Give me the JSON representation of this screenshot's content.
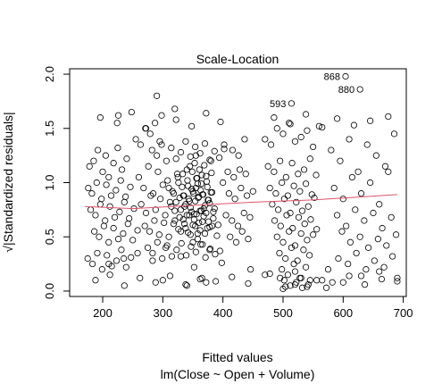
{
  "chart_data": {
    "type": "scatter",
    "title": "Scale-Location",
    "xlabel": "Fitted values",
    "subtitle": "lm(Close ~ Open + Volume)",
    "ylabel": "√|Standardized residuals|",
    "xlim": [
      145,
      705
    ],
    "ylim": [
      -0.05,
      2.05
    ],
    "x_ticks": [
      200,
      300,
      400,
      500,
      600,
      700
    ],
    "x_tick_labels": [
      "200",
      "300",
      "400",
      "500",
      "600",
      "700"
    ],
    "y_ticks": [
      0.0,
      0.5,
      1.0,
      1.5,
      2.0
    ],
    "y_tick_labels": [
      "0.0",
      "0.5",
      "1.0",
      "1.5",
      "2.0"
    ],
    "grid": false,
    "marker": "open-circle",
    "smoother_color": "#DF536B",
    "smoother": {
      "x": [
        170,
        250,
        350,
        450,
        550,
        690
      ],
      "y": [
        0.78,
        0.76,
        0.79,
        0.82,
        0.84,
        0.89
      ]
    },
    "labeled_points": [
      {
        "label": "868",
        "x": 604,
        "y": 1.98
      },
      {
        "label": "593",
        "x": 514,
        "y": 1.73
      },
      {
        "label": "880",
        "x": 628,
        "y": 1.86
      }
    ],
    "points": {
      "x": [
        178,
        185,
        192,
        200,
        205,
        210,
        218,
        225,
        232,
        240,
        176,
        182,
        190,
        198,
        206,
        214,
        222,
        230,
        238,
        246,
        180,
        188,
        196,
        204,
        212,
        220,
        228,
        236,
        244,
        252,
        186,
        194,
        202,
        210,
        218,
        226,
        234,
        242,
        250,
        258,
        175,
        183,
        191,
        199,
        207,
        215,
        223,
        231,
        239,
        247,
        255,
        263,
        271,
        279,
        287,
        295,
        260,
        268,
        276,
        284,
        292,
        300,
        308,
        316,
        324,
        332,
        340,
        348,
        356,
        364,
        372,
        380,
        264,
        272,
        280,
        288,
        296,
        304,
        312,
        320,
        328,
        336,
        344,
        352,
        360,
        368,
        376,
        384,
        270,
        278,
        286,
        294,
        302,
        310,
        318,
        326,
        334,
        342,
        350,
        358,
        366,
        374,
        382,
        390,
        275,
        283,
        291,
        299,
        307,
        315,
        323,
        331,
        339,
        347,
        355,
        363,
        371,
        379,
        387,
        395,
        282,
        290,
        298,
        306,
        314,
        322,
        330,
        338,
        346,
        354,
        362,
        370,
        378,
        386,
        394,
        402,
        310,
        318,
        326,
        334,
        342,
        350,
        358,
        366,
        374,
        382,
        314,
        322,
        330,
        338,
        346,
        354,
        362,
        370,
        378,
        386,
        320,
        328,
        336,
        344,
        352,
        360,
        368,
        376,
        384,
        392,
        325,
        333,
        341,
        349,
        357,
        365,
        373,
        381,
        330,
        338,
        346,
        354,
        362,
        370,
        378,
        335,
        343,
        351,
        359,
        367,
        375,
        340,
        348,
        356,
        364,
        372,
        345,
        353,
        361,
        369,
        350,
        358,
        366,
        355,
        363,
        400,
        410,
        420,
        430,
        440,
        450,
        405,
        415,
        425,
        435,
        445,
        408,
        418,
        428,
        438,
        412,
        422,
        432,
        442,
        402,
        416,
        426,
        436,
        446,
        470,
        480,
        490,
        500,
        510,
        520,
        530,
        540,
        550,
        560,
        475,
        485,
        495,
        505,
        515,
        525,
        535,
        545,
        555,
        478,
        488,
        498,
        508,
        518,
        528,
        538,
        548,
        482,
        492,
        502,
        512,
        522,
        532,
        542,
        552,
        486,
        496,
        506,
        516,
        526,
        536,
        546,
        556,
        490,
        500,
        510,
        520,
        530,
        540,
        550,
        494,
        504,
        514,
        524,
        534,
        544,
        498,
        508,
        518,
        528,
        538,
        502,
        512,
        522,
        532,
        542,
        580,
        595,
        610,
        625,
        640,
        655,
        670,
        685,
        585,
        600,
        615,
        630,
        645,
        660,
        675,
        590,
        605,
        620,
        635,
        650,
        665,
        680,
        598,
        612,
        628,
        642,
        658,
        672,
        688,
        592,
        608,
        622,
        638,
        652,
        668,
        682,
        210,
        235,
        258,
        283,
        305,
        330,
        352,
        378,
        398,
        470,
        495,
        520,
        545,
        575,
        600,
        630,
        660,
        690,
        196,
        224,
        248,
        272,
        298,
        322,
        348,
        372,
        396,
        485,
        512,
        538,
        565,
        590,
        618,
        645,
        675,
        188,
        212,
        236,
        262,
        288,
        312,
        338,
        362,
        388,
        415,
        442,
        478,
        504,
        530,
        556,
        582,
        610,
        636,
        664,
        690,
        226,
        290,
        320,
        355,
        380,
        300,
        340,
        365,
        372,
        500,
        520,
        540,
        565,
        572
      ],
      "y": [
        1.15,
        1.2,
        1.3,
        1.1,
        1.25,
        1.05,
        1.18,
        1.32,
        1.12,
        1.22,
        0.95,
        0.9,
        1.0,
        0.85,
        0.98,
        0.88,
        0.93,
        1.02,
        0.87,
        0.96,
        0.75,
        0.7,
        0.8,
        0.65,
        0.78,
        0.68,
        0.73,
        0.82,
        0.67,
        0.76,
        0.55,
        0.5,
        0.6,
        0.45,
        0.58,
        0.48,
        0.53,
        0.62,
        0.47,
        0.56,
        0.3,
        0.25,
        0.35,
        0.2,
        0.33,
        0.23,
        0.28,
        0.38,
        0.22,
        0.31,
        1.4,
        1.35,
        1.5,
        1.45,
        1.55,
        1.38,
        1.05,
        0.95,
        1.15,
        0.9,
        1.1,
        0.98,
        1.02,
        0.92,
        1.08,
        0.96,
        1.12,
        0.94,
        1.04,
        0.99,
        1.06,
        0.91,
        0.8,
        0.72,
        0.88,
        0.75,
        0.85,
        0.7,
        0.82,
        0.74,
        0.86,
        0.78,
        0.83,
        0.71,
        0.87,
        0.76,
        0.84,
        0.73,
        0.6,
        0.55,
        0.65,
        0.52,
        0.63,
        0.5,
        0.62,
        0.57,
        0.66,
        0.54,
        0.61,
        0.53,
        0.64,
        0.58,
        0.6,
        0.51,
        0.4,
        0.35,
        0.45,
        0.3,
        0.42,
        0.32,
        0.38,
        0.44,
        0.33,
        0.41,
        0.36,
        0.43,
        0.31,
        0.39,
        0.34,
        0.37,
        1.3,
        1.25,
        1.35,
        1.2,
        1.32,
        1.22,
        1.28,
        1.38,
        1.24,
        1.33,
        1.27,
        1.36,
        1.21,
        1.29,
        1.23,
        1.31,
        0.95,
        0.9,
        1.0,
        0.88,
        0.97,
        0.92,
        0.99,
        0.89,
        0.96,
        0.91,
        0.78,
        0.82,
        0.75,
        0.8,
        0.77,
        0.83,
        0.74,
        0.79,
        0.81,
        0.76,
        0.65,
        0.68,
        0.62,
        0.7,
        0.66,
        0.63,
        0.69,
        0.64,
        0.67,
        0.61,
        1.05,
        1.08,
        1.02,
        1.1,
        1.04,
        1.07,
        1.01,
        1.09,
        0.55,
        0.58,
        0.52,
        0.6,
        0.56,
        0.53,
        0.59,
        0.88,
        0.85,
        0.9,
        0.86,
        0.89,
        0.84,
        0.7,
        0.73,
        0.71,
        0.74,
        0.72,
        1.15,
        1.18,
        1.12,
        1.16,
        0.45,
        0.48,
        0.43,
        0.95,
        0.93,
        1.0,
        0.9,
        0.85,
        0.95,
        0.88,
        0.92,
        0.7,
        0.65,
        0.6,
        0.72,
        0.68,
        1.1,
        1.05,
        1.12,
        1.08,
        0.5,
        0.45,
        0.55,
        0.48,
        1.35,
        1.3,
        1.25,
        1.4,
        0.2,
        1.4,
        1.35,
        1.5,
        1.45,
        1.55,
        1.38,
        1.42,
        1.48,
        1.33,
        1.52,
        1.15,
        1.1,
        1.2,
        1.05,
        1.18,
        1.08,
        1.12,
        1.22,
        1.07,
        0.95,
        0.9,
        1.0,
        0.88,
        0.97,
        0.92,
        0.99,
        0.89,
        0.8,
        0.75,
        0.85,
        0.72,
        0.82,
        0.74,
        0.78,
        0.86,
        0.65,
        0.6,
        0.7,
        0.58,
        0.68,
        0.62,
        0.66,
        0.57,
        0.5,
        0.45,
        0.55,
        0.42,
        0.53,
        0.47,
        0.52,
        0.35,
        0.3,
        0.4,
        0.28,
        0.38,
        0.33,
        0.2,
        0.15,
        0.25,
        0.12,
        0.22,
        0.1,
        0.05,
        0.08,
        0.03,
        0.06,
        1.3,
        1.2,
        1.4,
        1.1,
        1.35,
        1.25,
        1.15,
        1.45,
        0.95,
        0.85,
        1.05,
        0.9,
        1.0,
        0.8,
        1.1,
        0.7,
        0.6,
        0.75,
        0.65,
        0.72,
        0.58,
        0.68,
        0.55,
        0.45,
        0.5,
        0.4,
        0.48,
        0.42,
        0.52,
        0.3,
        0.25,
        0.35,
        0.2,
        0.28,
        0.22,
        0.32,
        0.25,
        0.3,
        0.35,
        0.28,
        0.4,
        0.32,
        0.22,
        0.38,
        0.26,
        0.15,
        0.12,
        0.18,
        0.1,
        0.2,
        0.08,
        0.14,
        0.18,
        0.12,
        1.6,
        1.55,
        1.65,
        1.5,
        1.62,
        1.58,
        1.52,
        1.64,
        1.56,
        1.6,
        1.54,
        1.63,
        1.51,
        1.59,
        1.53,
        1.57,
        1.61,
        0.1,
        0.15,
        0.05,
        0.12,
        0.08,
        0.14,
        0.06,
        0.11,
        0.09,
        0.13,
        0.07,
        0.16,
        0.04,
        0.12,
        0.1,
        0.08,
        0.14,
        0.06,
        0.11,
        0.09,
        1.62,
        1.8,
        1.68,
        1.25,
        1.2,
        0.1,
        0.05,
        0.12,
        0.08,
        0.02,
        0.06,
        0.04,
        0.1,
        0.03
      ]
    }
  }
}
